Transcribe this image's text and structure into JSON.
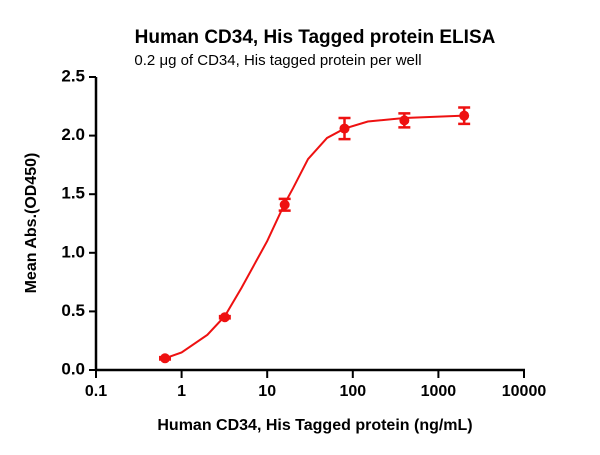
{
  "chart_data": {
    "type": "scatter",
    "title": "Human CD34, His Tagged protein ELISA",
    "subtitle": "0.2 μg of CD34, His tagged protein per well",
    "x_label": "Human CD34, His Tagged protein (ng/mL)",
    "y_label": "Mean Abs.(OD450)",
    "x_scale": "log",
    "xlim": [
      0.1,
      10000
    ],
    "xticks": [
      0.1,
      1,
      10,
      100,
      1000,
      10000
    ],
    "ylim": [
      0,
      2.5
    ],
    "yticks": [
      {
        "value": 0,
        "label": "0.0"
      },
      0.5,
      {
        "value": 1,
        "label": "1.0"
      },
      1.5,
      {
        "value": 2,
        "label": "2.0"
      },
      2.5
    ],
    "series": [
      {
        "color": "#ee1111",
        "x": [
          0.64,
          3.2,
          16,
          80,
          400,
          2000
        ],
        "values": [
          0.1,
          0.45,
          1.41,
          2.06,
          2.13,
          2.17
        ],
        "errors": [
          0.01,
          0.01,
          0.05,
          0.09,
          0.06,
          0.07
        ]
      }
    ],
    "fit": {
      "color": "#ee1111",
      "x": [
        0.64,
        1,
        2,
        3.2,
        5,
        10,
        16,
        20,
        30,
        50,
        80,
        150,
        400,
        2000
      ],
      "values": [
        0.1,
        0.15,
        0.3,
        0.46,
        0.7,
        1.1,
        1.42,
        1.55,
        1.8,
        1.98,
        2.06,
        2.12,
        2.15,
        2.17
      ]
    }
  }
}
